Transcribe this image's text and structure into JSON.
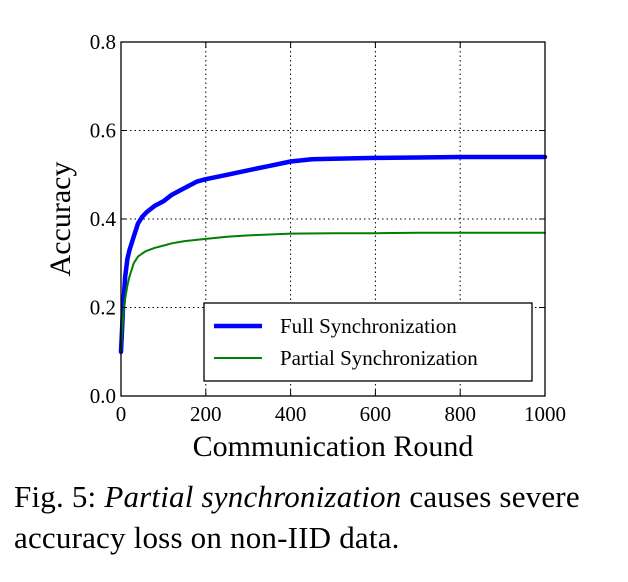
{
  "chart_data": {
    "type": "line",
    "xlabel": "Communication Round",
    "ylabel": "Accuracy",
    "xlim": [
      0,
      1000
    ],
    "ylim": [
      0.0,
      0.8
    ],
    "xticks": [
      0,
      200,
      400,
      600,
      800,
      1000
    ],
    "xtick_labels": [
      "0",
      "200",
      "400",
      "600",
      "800",
      "1000"
    ],
    "yticks": [
      0.0,
      0.2,
      0.4,
      0.6,
      0.8
    ],
    "ytick_labels": [
      "0.0",
      "0.2",
      "0.4",
      "0.6",
      "0.8"
    ],
    "grid": true,
    "legend_position": "lower-right",
    "series": [
      {
        "name": "Full Synchronization",
        "color": "#0000ff",
        "x": [
          0,
          5,
          10,
          15,
          20,
          30,
          40,
          50,
          60,
          80,
          100,
          120,
          150,
          180,
          200,
          250,
          300,
          350,
          400,
          450,
          500,
          600,
          700,
          800,
          900,
          1000
        ],
        "y": [
          0.1,
          0.2,
          0.27,
          0.31,
          0.33,
          0.36,
          0.39,
          0.405,
          0.415,
          0.43,
          0.44,
          0.455,
          0.47,
          0.485,
          0.49,
          0.5,
          0.51,
          0.52,
          0.53,
          0.535,
          0.536,
          0.538,
          0.539,
          0.54,
          0.54,
          0.54
        ]
      },
      {
        "name": "Partial Synchronization",
        "color": "#008000",
        "x": [
          0,
          5,
          10,
          15,
          20,
          30,
          40,
          50,
          60,
          80,
          100,
          120,
          150,
          200,
          250,
          300,
          350,
          400,
          500,
          600,
          700,
          800,
          900,
          1000
        ],
        "y": [
          0.1,
          0.18,
          0.22,
          0.25,
          0.27,
          0.3,
          0.315,
          0.322,
          0.328,
          0.335,
          0.34,
          0.345,
          0.35,
          0.355,
          0.36,
          0.363,
          0.365,
          0.367,
          0.368,
          0.368,
          0.369,
          0.369,
          0.369,
          0.369
        ]
      }
    ]
  },
  "caption": {
    "prefix": "Fig. 5: ",
    "emphasis": "Partial synchronization",
    "rest": " causes severe accuracy loss on non-IID data."
  }
}
